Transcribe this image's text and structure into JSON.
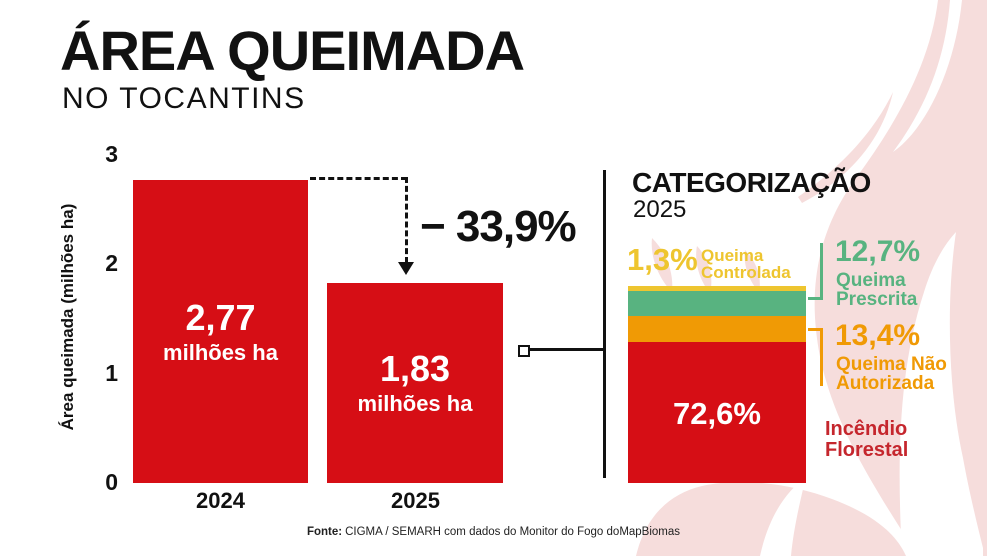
{
  "header": {
    "title": "ÁREA QUEIMADA",
    "subtitle": "NO TOCANTINS"
  },
  "colors": {
    "bar_red": "#d60e15",
    "yellow": "#eec52f",
    "green": "#58b380",
    "orange": "#f09a05",
    "incendio_label": "#c5262d",
    "ink": "#111111",
    "pink": "#f6dddc"
  },
  "chart_data": [
    {
      "type": "bar",
      "title": "Área queimada no Tocantins",
      "ylabel": "Área queimada (milhões ha)",
      "categories": [
        "2024",
        "2025"
      ],
      "values": [
        2.77,
        1.83
      ],
      "bar_value_labels": [
        "2,77",
        "1,83"
      ],
      "bar_unit_label": "milhões ha",
      "yticks": [
        3,
        2,
        1,
        0
      ],
      "ylim": [
        0,
        3
      ],
      "grid": false,
      "bar_color": "#d60e15",
      "annotation": "− 33,9%",
      "annotation_meaning": "change from 2024 to 2025"
    },
    {
      "type": "bar",
      "variant": "stacked-percentage",
      "title": "CATEGORIZAÇÃO",
      "subtitle": "2025",
      "ylim": [
        0,
        100
      ],
      "segments": [
        {
          "name": "Queima Controlada",
          "value": 1.3,
          "value_label": "1,3%",
          "color": "#eec52f"
        },
        {
          "name": "Queima Prescrita",
          "value": 12.7,
          "value_label": "12,7%",
          "color": "#58b380"
        },
        {
          "name": "Queima Não Autorizada",
          "value": 13.4,
          "value_label": "13,4%",
          "color": "#f09a05"
        },
        {
          "name": "Incêndio Florestal",
          "value": 72.6,
          "value_label": "72,6%",
          "color": "#d60e15"
        }
      ]
    }
  ],
  "source": {
    "label": "Fonte:",
    "text": "CIGMA / SEMARH com dados do Monitor do Fogo doMapBiomas"
  }
}
